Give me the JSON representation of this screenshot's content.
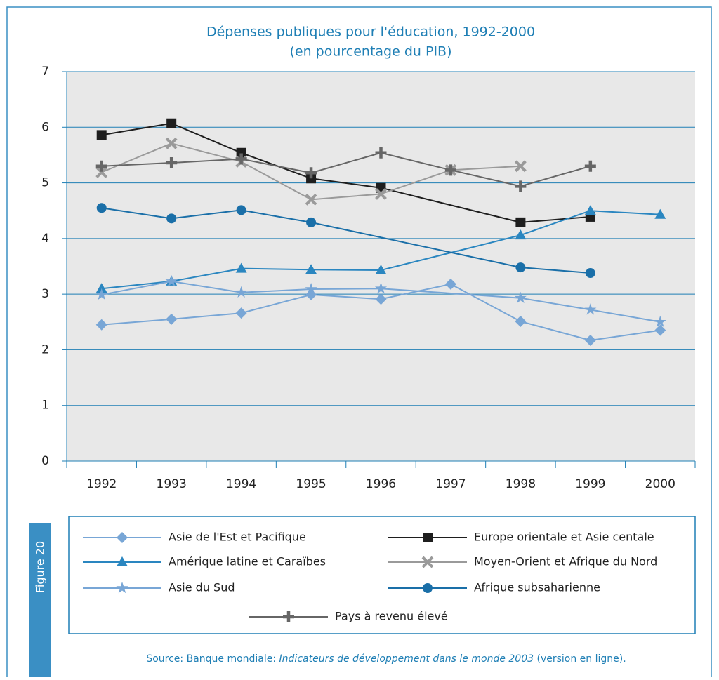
{
  "chart_data": {
    "type": "line",
    "title": "Dépenses publiques pour l'éducation, 1992-2000",
    "subtitle": "(en pourcentage du PIB)",
    "xlim": [
      1991.5,
      2000.5
    ],
    "xticks": [
      1992,
      1993,
      1994,
      1995,
      1996,
      1997,
      1998,
      1999,
      2000
    ],
    "ylim": [
      0,
      7
    ],
    "yticks": [
      0,
      1,
      2,
      3,
      4,
      5,
      6,
      7
    ],
    "grid": true,
    "series": [
      {
        "name": "Asie de l'Est et Pacifique",
        "color": "#78a6d6",
        "marker": "diamond",
        "x": [
          1992,
          1993,
          1994,
          1995,
          1996,
          1997,
          1998,
          1999,
          2000
        ],
        "values": [
          2.45,
          2.55,
          2.66,
          2.99,
          2.91,
          3.18,
          2.51,
          2.17,
          2.35
        ]
      },
      {
        "name": "Europe orientale et Asie centale",
        "color": "#1e1e1e",
        "marker": "square",
        "x": [
          1992,
          1993,
          1994,
          1995,
          1996,
          1998,
          1999
        ],
        "values": [
          5.86,
          6.07,
          5.54,
          5.08,
          4.91,
          4.29,
          4.39
        ]
      },
      {
        "name": "Amérique latine et Caraïbes",
        "color": "#2a86c0",
        "marker": "triangle",
        "x": [
          1992,
          1993,
          1994,
          1995,
          1996,
          1998,
          1999,
          2000
        ],
        "values": [
          3.1,
          3.23,
          3.46,
          3.44,
          3.43,
          4.06,
          4.5,
          4.43
        ]
      },
      {
        "name": "Moyen-Orient et Afrique du Nord",
        "color": "#9a9a9a",
        "marker": "x",
        "x": [
          1992,
          1993,
          1994,
          1995,
          1996,
          1997,
          1998
        ],
        "values": [
          5.19,
          5.71,
          5.38,
          4.7,
          4.8,
          5.23,
          5.3
        ]
      },
      {
        "name": "Asie du Sud",
        "color": "#78a6d6",
        "marker": "star",
        "x": [
          1992,
          1993,
          1994,
          1995,
          1996,
          1998,
          1999,
          2000
        ],
        "values": [
          2.99,
          3.23,
          3.03,
          3.09,
          3.1,
          2.93,
          2.72,
          2.5
        ]
      },
      {
        "name": "Afrique subsaharienne",
        "color": "#1a6fa8",
        "marker": "circle",
        "x": [
          1992,
          1993,
          1994,
          1995,
          1998,
          1999
        ],
        "values": [
          4.55,
          4.36,
          4.51,
          4.29,
          3.48,
          3.38
        ]
      },
      {
        "name": "Pays à revenu élevé",
        "color": "#666666",
        "marker": "plus",
        "x": [
          1992,
          1993,
          1994,
          1995,
          1996,
          1997,
          1998,
          1999
        ],
        "values": [
          5.3,
          5.36,
          5.43,
          5.18,
          5.54,
          5.23,
          4.94,
          5.3
        ]
      }
    ],
    "source_prefix": "Source: Banque mondiale: ",
    "source_title": "Indicateurs de développement dans le monde 2003",
    "source_suffix": " (version en ligne).",
    "figure_label": "Figure 20"
  }
}
